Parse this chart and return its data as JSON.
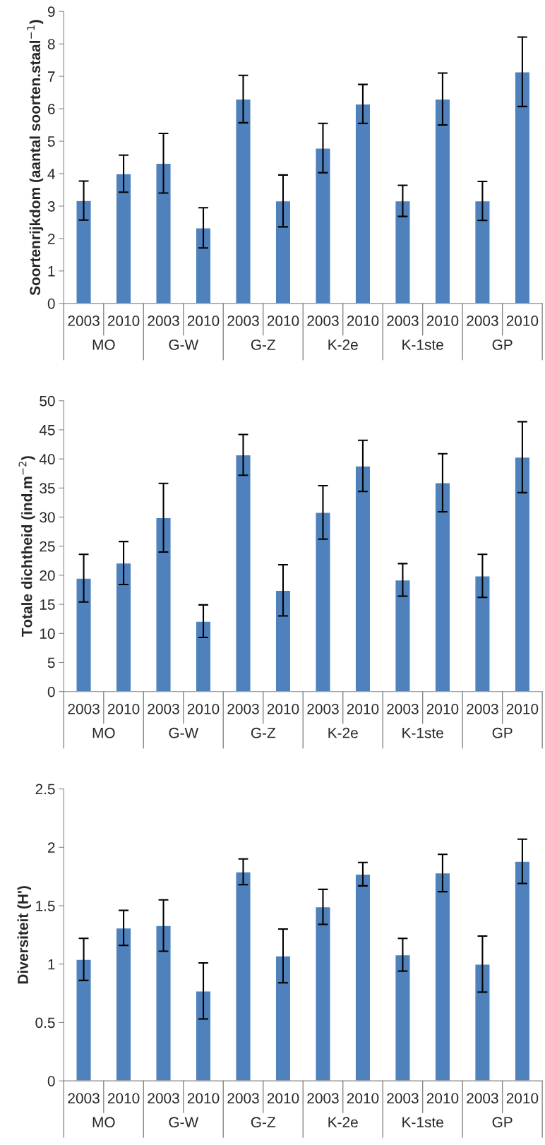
{
  "chart_data": [
    {
      "type": "bar",
      "ylabel": "Soortenrijkdom (aantal soorten.staal$^{−1}$)",
      "categories": [
        "2003",
        "2010",
        "2003",
        "2010",
        "2003",
        "2010",
        "2003",
        "2010",
        "2003",
        "2010",
        "2003",
        "2010"
      ],
      "values": [
        3.17,
        4.0,
        4.32,
        2.33,
        6.3,
        3.16,
        4.79,
        6.15,
        3.16,
        6.3,
        3.16,
        7.14
      ],
      "errors": [
        0.6,
        0.57,
        0.92,
        0.62,
        0.73,
        0.8,
        0.76,
        0.6,
        0.48,
        0.8,
        0.6,
        1.07
      ],
      "color": "#4f81bd",
      "ylim": [
        0,
        9
      ],
      "yticks": [
        0,
        1,
        2,
        3,
        4,
        5,
        6,
        7,
        8,
        9
      ],
      "grid": false,
      "legend": false,
      "annotations": [
        "MO",
        "G-W",
        "G-Z",
        "K-2e",
        "K-1ste",
        "GP"
      ]
    },
    {
      "type": "bar",
      "ylabel": "Totale dichtheid (ind.m$^{−2}$)",
      "categories": [
        "2003",
        "2010",
        "2003",
        "2010",
        "2003",
        "2010",
        "2003",
        "2010",
        "2003",
        "2010",
        "2003",
        "2010"
      ],
      "values": [
        19.5,
        22.1,
        29.9,
        12.1,
        40.7,
        17.4,
        30.8,
        38.8,
        19.2,
        35.9,
        19.9,
        40.3
      ],
      "errors": [
        4.1,
        3.7,
        5.9,
        2.8,
        3.5,
        4.4,
        4.6,
        4.4,
        2.8,
        5.0,
        3.7,
        6.1
      ],
      "color": "#4f81bd",
      "ylim": [
        0,
        50
      ],
      "yticks": [
        0,
        5,
        10,
        15,
        20,
        25,
        30,
        35,
        40,
        45,
        50
      ],
      "grid": false,
      "legend": false,
      "annotations": [
        "MO",
        "G-W",
        "G-Z",
        "K-2e",
        "K-1ste",
        "GP"
      ]
    },
    {
      "type": "bar",
      "ylabel": "Diversiteit (H')",
      "categories": [
        "2003",
        "2010",
        "2003",
        "2010",
        "2003",
        "2010",
        "2003",
        "2010",
        "2003",
        "2010",
        "2003",
        "2010"
      ],
      "values": [
        1.04,
        1.31,
        1.33,
        0.77,
        1.79,
        1.07,
        1.49,
        1.77,
        1.08,
        1.78,
        1.0,
        1.88
      ],
      "errors": [
        0.18,
        0.15,
        0.22,
        0.24,
        0.11,
        0.23,
        0.15,
        0.1,
        0.14,
        0.16,
        0.24,
        0.19
      ],
      "color": "#4f81bd",
      "ylim": [
        0,
        2.5
      ],
      "yticks": [
        0,
        0.5,
        1,
        1.5,
        2,
        2.5
      ],
      "grid": false,
      "legend": false,
      "annotations": [
        "MO",
        "G-W",
        "G-Z",
        "K-2e",
        "K-1ste",
        "GP"
      ]
    }
  ]
}
